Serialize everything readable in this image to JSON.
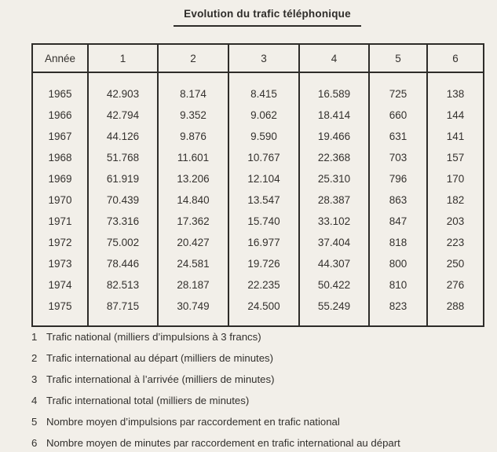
{
  "title": "Evolution du trafic téléphonique",
  "table": {
    "headers": [
      "Année",
      "1",
      "2",
      "3",
      "4",
      "5",
      "6"
    ],
    "rows": [
      [
        "1965",
        "42.903",
        "8.174",
        "8.415",
        "16.589",
        "725",
        "138"
      ],
      [
        "1966",
        "42.794",
        "9.352",
        "9.062",
        "18.414",
        "660",
        "144"
      ],
      [
        "1967",
        "44.126",
        "9.876",
        "9.590",
        "19.466",
        "631",
        "141"
      ],
      [
        "1968",
        "51.768",
        "11.601",
        "10.767",
        "22.368",
        "703",
        "157"
      ],
      [
        "1969",
        "61.919",
        "13.206",
        "12.104",
        "25.310",
        "796",
        "170"
      ],
      [
        "1970",
        "70.439",
        "14.840",
        "13.547",
        "28.387",
        "863",
        "182"
      ],
      [
        "1971",
        "73.316",
        "17.362",
        "15.740",
        "33.102",
        "847",
        "203"
      ],
      [
        "1972",
        "75.002",
        "20.427",
        "16.977",
        "37.404",
        "818",
        "223"
      ],
      [
        "1973",
        "78.446",
        "24.581",
        "19.726",
        "44.307",
        "800",
        "250"
      ],
      [
        "1974",
        "82.513",
        "28.187",
        "22.235",
        "50.422",
        "810",
        "276"
      ],
      [
        "1975",
        "87.715",
        "30.749",
        "24.500",
        "55.249",
        "823",
        "288"
      ]
    ]
  },
  "footnotes": [
    {
      "num": "1",
      "text": "Trafic national (milliers d’impulsions à 3 francs)"
    },
    {
      "num": "2",
      "text": "Trafic international au départ (milliers de minutes)"
    },
    {
      "num": "3",
      "text": "Trafic international à l’arrivée (milliers de minutes)"
    },
    {
      "num": "4",
      "text": "Trafic international total (milliers de minutes)"
    },
    {
      "num": "5",
      "text": "Nombre moyen d’impulsions par raccordement en trafic national"
    },
    {
      "num": "6",
      "text": "Nombre moyen de minutes par raccordement en trafic international au départ"
    }
  ],
  "colors": {
    "paper": "#f2efe9",
    "ink": "#34312e",
    "border": "#2e2c29"
  }
}
